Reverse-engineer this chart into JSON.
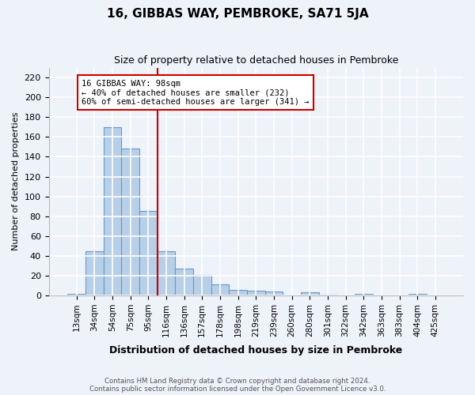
{
  "title": "16, GIBBAS WAY, PEMBROKE, SA71 5JA",
  "subtitle": "Size of property relative to detached houses in Pembroke",
  "xlabel": "Distribution of detached houses by size in Pembroke",
  "ylabel": "Number of detached properties",
  "footer_line1": "Contains HM Land Registry data © Crown copyright and database right 2024.",
  "footer_line2": "Contains public sector information licensed under the Open Government Licence v3.0.",
  "categories": [
    "13sqm",
    "34sqm",
    "54sqm",
    "75sqm",
    "95sqm",
    "116sqm",
    "136sqm",
    "157sqm",
    "178sqm",
    "198sqm",
    "219sqm",
    "239sqm",
    "260sqm",
    "280sqm",
    "301sqm",
    "322sqm",
    "342sqm",
    "363sqm",
    "383sqm",
    "404sqm",
    "425sqm"
  ],
  "values": [
    2,
    45,
    170,
    148,
    85,
    45,
    27,
    21,
    11,
    6,
    5,
    4,
    0,
    3,
    1,
    0,
    2,
    0,
    0,
    2,
    0
  ],
  "bar_color": "#b8cfe8",
  "bar_edge_color": "#6699cc",
  "bg_color": "#eef2f9",
  "grid_color": "#ffffff",
  "vline_x": 4.5,
  "vline_color": "#cc0000",
  "annotation_text": "16 GIBBAS WAY: 98sqm\n← 40% of detached houses are smaller (232)\n60% of semi-detached houses are larger (341) →",
  "annotation_box_color": "#ffffff",
  "annotation_box_edge": "#cc0000",
  "ylim": [
    0,
    230
  ],
  "yticks": [
    0,
    20,
    40,
    60,
    80,
    100,
    120,
    140,
    160,
    180,
    200,
    220
  ]
}
